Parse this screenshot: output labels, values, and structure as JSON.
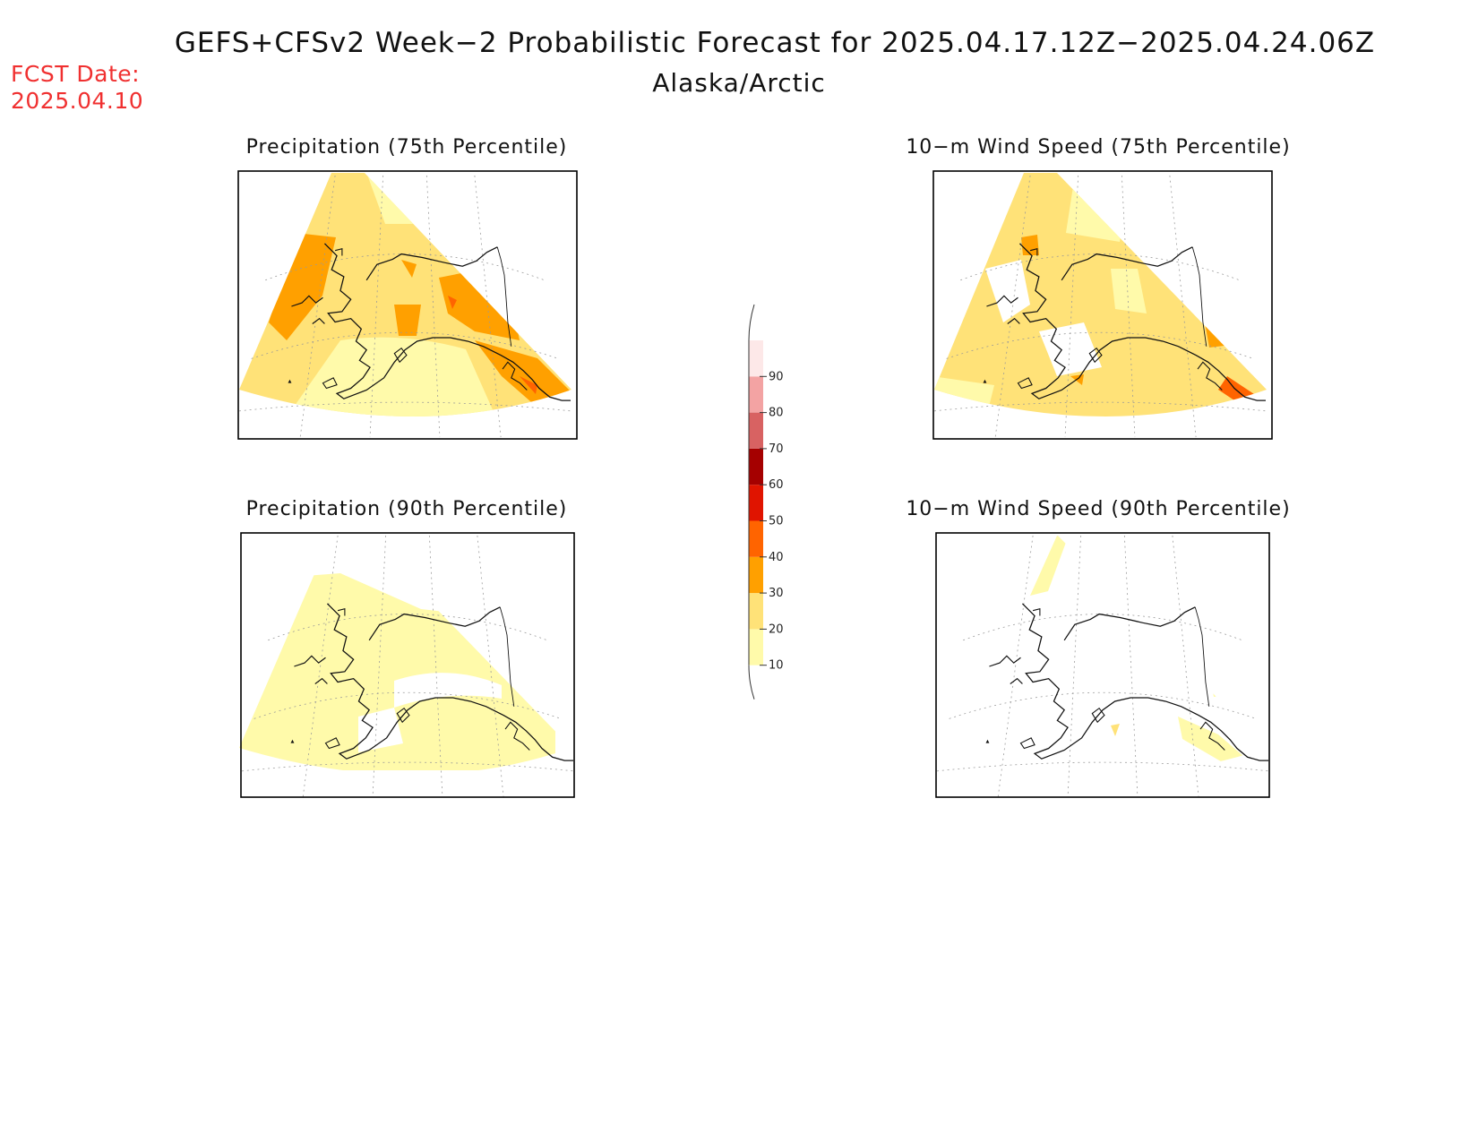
{
  "header": {
    "title": "GEFS+CFSv2 Week−2 Probabilistic Forecast for 2025.04.17.12Z−2025.04.24.06Z",
    "region": "Alaska/Arctic",
    "fcst_label": "FCST Date:",
    "fcst_date": "2025.04.10"
  },
  "panels": [
    {
      "title": "Precipitation (75th Percentile)"
    },
    {
      "title": "10−m Wind Speed (75th Percentile)"
    },
    {
      "title": "Precipitation (90th Percentile)"
    },
    {
      "title": "10−m Wind Speed (90th Percentile)"
    }
  ],
  "colorbar": {
    "levels": [
      "10",
      "20",
      "30",
      "40",
      "50",
      "60",
      "70",
      "80",
      "90"
    ],
    "colors": [
      "#fffaaa",
      "#ffe278",
      "#ffa000",
      "#ff6400",
      "#e01400",
      "#a50000",
      "#d86262",
      "#f3a3a3",
      "#fde8e8"
    ],
    "low_color": "#ffffff"
  }
}
